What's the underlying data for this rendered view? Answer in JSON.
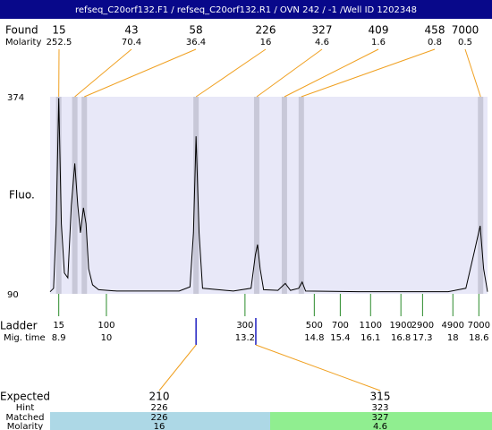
{
  "header": {
    "title": "refseq_C20orf132.F1 / refseq_C20orf132.R1 / OVN 242 / -1 /Well ID 1202348"
  },
  "found": {
    "label": "Found",
    "molarity_label": "Molarity",
    "peaks": [
      {
        "size": 15,
        "molarity": 252.5,
        "time": 8.9
      },
      {
        "size": 43,
        "molarity": 70.4,
        "time": 9.27
      },
      {
        "size": 58,
        "molarity": 36.4,
        "time": 9.49
      },
      {
        "size": 226,
        "molarity": 16,
        "time": 12.07
      },
      {
        "size": 327,
        "molarity": 4.6,
        "time": 13.47
      },
      {
        "size": 409,
        "molarity": 1.6,
        "time": 14.11
      },
      {
        "size": 458,
        "molarity": 0.8,
        "time": 14.5
      },
      {
        "size": 7000,
        "molarity": 0.5,
        "time": 18.64
      }
    ]
  },
  "chart_data": {
    "type": "line",
    "ylabel": "Fluo.",
    "color": "#000000",
    "x": [
      8.7,
      8.78,
      8.84,
      8.9,
      8.96,
      9.03,
      9.11,
      9.19,
      9.27,
      9.34,
      9.4,
      9.47,
      9.53,
      9.59,
      9.68,
      9.82,
      10.24,
      11.68,
      11.93,
      12.01,
      12.07,
      12.14,
      12.22,
      12.93,
      13.34,
      13.44,
      13.49,
      13.55,
      13.63,
      13.96,
      14.13,
      14.25,
      14.44,
      14.52,
      14.6,
      15.82,
      17.89,
      18.3,
      18.5,
      18.63,
      18.71,
      18.8
    ],
    "values": [
      93,
      98,
      191,
      372,
      191,
      120,
      113,
      217,
      278,
      217,
      178,
      214,
      191,
      126,
      103,
      96,
      94,
      94,
      100,
      178,
      317,
      178,
      98,
      94,
      98,
      146,
      161,
      126,
      96,
      95,
      105,
      95,
      98,
      107,
      94,
      93,
      93,
      98,
      152,
      188,
      126,
      93
    ],
    "xlim": [
      8.7,
      18.8
    ],
    "ylim": [
      90,
      374
    ],
    "yticks": [
      90,
      374
    ]
  },
  "ladder": {
    "label": "Ladder",
    "time_label": "Mig. time",
    "sizes": [
      15,
      100,
      300,
      500,
      700,
      1100,
      1900,
      2900,
      4900,
      7000
    ],
    "times": [
      8.9,
      10,
      13.2,
      14.8,
      15.4,
      16.1,
      16.8,
      17.3,
      18,
      18.6
    ]
  },
  "expected": {
    "label": "Expected",
    "hint_label": "Hint",
    "matched_label": "Matched",
    "molarity_label": "Molarity",
    "items": [
      {
        "expected": 210,
        "hint": 226,
        "matched": 226,
        "molarity": 16,
        "time": 12.07
      },
      {
        "expected": 315,
        "hint": 323,
        "matched": 327,
        "molarity": 4.6,
        "time": 13.45
      }
    ]
  }
}
